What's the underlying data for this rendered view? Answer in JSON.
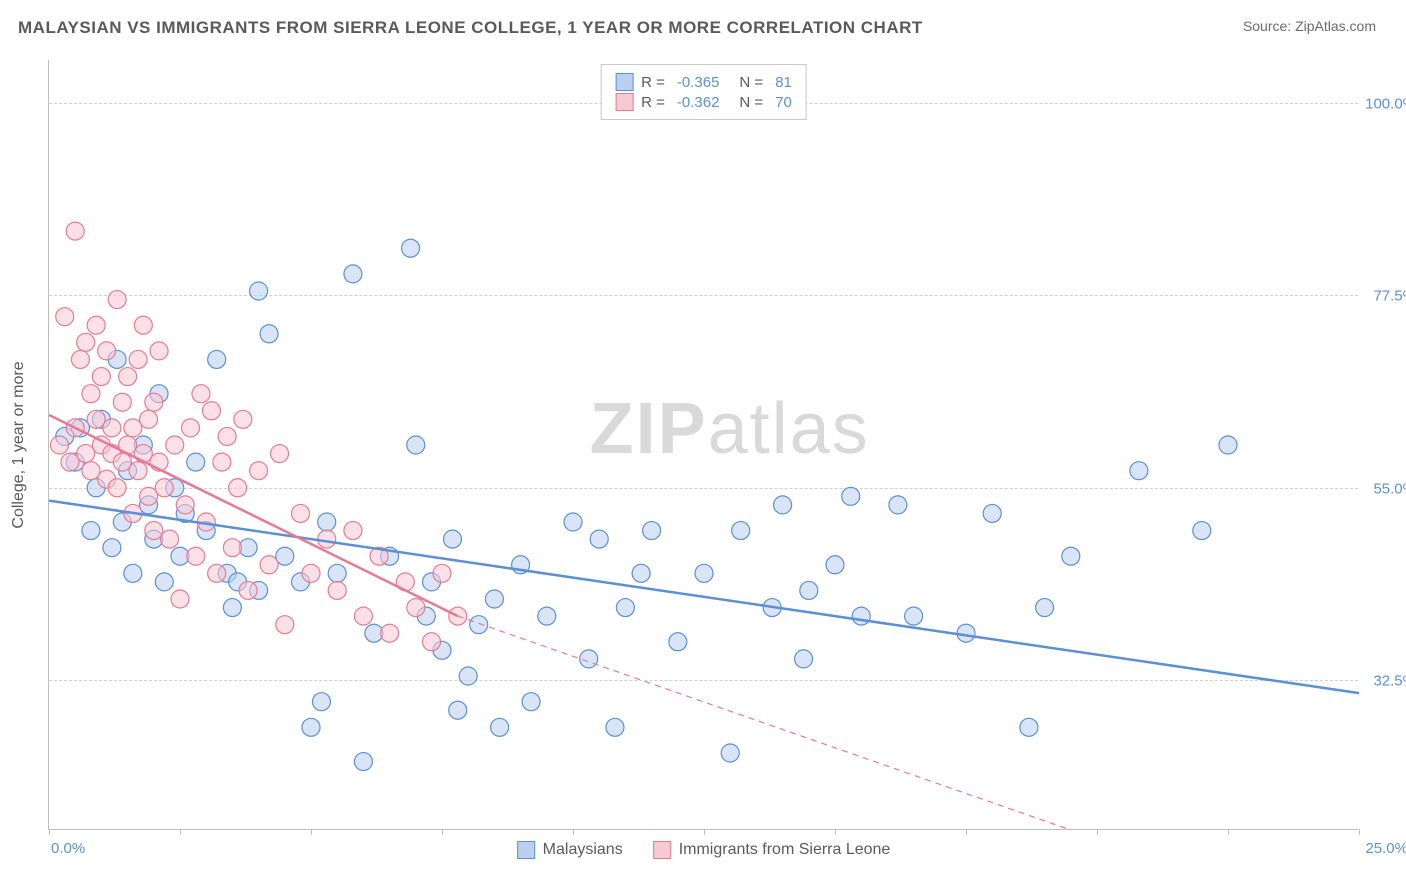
{
  "header": {
    "title": "MALAYSIAN VS IMMIGRANTS FROM SIERRA LEONE COLLEGE, 1 YEAR OR MORE CORRELATION CHART",
    "source": "Source: ZipAtlas.com"
  },
  "watermark": {
    "zip": "ZIP",
    "atlas": "atlas"
  },
  "chart": {
    "type": "scatter",
    "yaxis_title": "College, 1 year or more",
    "background_color": "#ffffff",
    "grid_color": "#d0d0d0",
    "axis_color": "#bdbdbd",
    "tick_label_color": "#5b8fd6",
    "xlim": [
      0,
      25
    ],
    "ylim": [
      15,
      105
    ],
    "xticks": [
      0,
      2.5,
      5,
      7.5,
      10,
      12.5,
      15,
      17.5,
      20,
      22.5,
      25
    ],
    "xtick_labels": {
      "left": "0.0%",
      "right": "25.0%"
    },
    "yticks": [
      {
        "value": 32.5,
        "label": "32.5%"
      },
      {
        "value": 55.0,
        "label": "55.0%"
      },
      {
        "value": 77.5,
        "label": "77.5%"
      },
      {
        "value": 100.0,
        "label": "100.0%"
      }
    ],
    "marker_radius": 9,
    "marker_opacity": 0.55,
    "legend_top": {
      "rows": [
        {
          "swatch_fill": "#b9d0ee",
          "swatch_border": "#5b8fd6",
          "r_label": "R =",
          "r_value": "-0.365",
          "n_label": "N =",
          "n_value": "81"
        },
        {
          "swatch_fill": "#f7c9d4",
          "swatch_border": "#e67a94",
          "r_label": "R =",
          "r_value": "-0.362",
          "n_label": "N =",
          "n_value": "70"
        }
      ]
    },
    "legend_bottom": {
      "items": [
        {
          "swatch_fill": "#b9d0ee",
          "swatch_border": "#5b8fd6",
          "label": "Malaysians"
        },
        {
          "swatch_fill": "#f7c9d4",
          "swatch_border": "#e67a94",
          "label": "Immigrants from Sierra Leone"
        }
      ]
    },
    "series": [
      {
        "name": "Malaysians",
        "fill": "#b9d0ee",
        "stroke": "#5b8fd6",
        "line_solid": {
          "x1": 0,
          "y1": 53.5,
          "x2": 25,
          "y2": 31.0
        },
        "line_width": 2.5,
        "points": [
          [
            0.3,
            61
          ],
          [
            0.5,
            58
          ],
          [
            0.6,
            62
          ],
          [
            0.8,
            50
          ],
          [
            0.9,
            55
          ],
          [
            1.0,
            63
          ],
          [
            1.2,
            48
          ],
          [
            1.3,
            70
          ],
          [
            1.4,
            51
          ],
          [
            1.5,
            57
          ],
          [
            1.6,
            45
          ],
          [
            1.8,
            60
          ],
          [
            1.9,
            53
          ],
          [
            2.0,
            49
          ],
          [
            2.1,
            66
          ],
          [
            2.2,
            44
          ],
          [
            2.4,
            55
          ],
          [
            2.5,
            47
          ],
          [
            2.6,
            52
          ],
          [
            2.8,
            58
          ],
          [
            3.0,
            50
          ],
          [
            3.2,
            70
          ],
          [
            3.4,
            45
          ],
          [
            3.5,
            41
          ],
          [
            3.6,
            44
          ],
          [
            3.8,
            48
          ],
          [
            4.0,
            43
          ],
          [
            4.2,
            73
          ],
          [
            4.5,
            47
          ],
          [
            4.8,
            44
          ],
          [
            5.0,
            27
          ],
          [
            5.2,
            30
          ],
          [
            5.3,
            51
          ],
          [
            5.5,
            45
          ],
          [
            5.8,
            80
          ],
          [
            6.0,
            23
          ],
          [
            6.2,
            38
          ],
          [
            6.5,
            47
          ],
          [
            7.0,
            60
          ],
          [
            7.2,
            40
          ],
          [
            7.3,
            44
          ],
          [
            7.5,
            36
          ],
          [
            7.7,
            49
          ],
          [
            7.8,
            29
          ],
          [
            8.0,
            33
          ],
          [
            8.2,
            39
          ],
          [
            8.5,
            42
          ],
          [
            8.6,
            27
          ],
          [
            9.0,
            46
          ],
          [
            9.2,
            30
          ],
          [
            9.5,
            40
          ],
          [
            10.0,
            51
          ],
          [
            10.3,
            35
          ],
          [
            10.5,
            49
          ],
          [
            10.8,
            27
          ],
          [
            11.0,
            41
          ],
          [
            11.3,
            45
          ],
          [
            11.5,
            50
          ],
          [
            12.0,
            37
          ],
          [
            12.5,
            45
          ],
          [
            13.0,
            24
          ],
          [
            13.2,
            50
          ],
          [
            13.8,
            41
          ],
          [
            14.0,
            53
          ],
          [
            14.4,
            35
          ],
          [
            14.5,
            43
          ],
          [
            15.0,
            46
          ],
          [
            15.3,
            54
          ],
          [
            15.5,
            40
          ],
          [
            16.2,
            53
          ],
          [
            16.5,
            40
          ],
          [
            17.5,
            38
          ],
          [
            18.0,
            52
          ],
          [
            18.7,
            27
          ],
          [
            19.0,
            41
          ],
          [
            19.5,
            47
          ],
          [
            20.8,
            57
          ],
          [
            22.0,
            50
          ],
          [
            22.5,
            60
          ],
          [
            6.9,
            83
          ],
          [
            4.0,
            78
          ]
        ]
      },
      {
        "name": "Immigrants from Sierra Leone",
        "fill": "#f7c9d4",
        "stroke": "#e67a94",
        "line_solid": {
          "x1": 0,
          "y1": 63.5,
          "x2": 7.8,
          "y2": 40.0
        },
        "line_dashed": {
          "x1": 7.8,
          "y1": 40.0,
          "x2": 19.5,
          "y2": 15.0
        },
        "line_width": 2.5,
        "points": [
          [
            0.2,
            60
          ],
          [
            0.3,
            75
          ],
          [
            0.4,
            58
          ],
          [
            0.5,
            85
          ],
          [
            0.5,
            62
          ],
          [
            0.6,
            70
          ],
          [
            0.7,
            59
          ],
          [
            0.7,
            72
          ],
          [
            0.8,
            66
          ],
          [
            0.8,
            57
          ],
          [
            0.9,
            63
          ],
          [
            0.9,
            74
          ],
          [
            1.0,
            60
          ],
          [
            1.0,
            68
          ],
          [
            1.1,
            56
          ],
          [
            1.1,
            71
          ],
          [
            1.2,
            62
          ],
          [
            1.2,
            59
          ],
          [
            1.3,
            77
          ],
          [
            1.3,
            55
          ],
          [
            1.4,
            58
          ],
          [
            1.4,
            65
          ],
          [
            1.5,
            60
          ],
          [
            1.5,
            68
          ],
          [
            1.6,
            52
          ],
          [
            1.6,
            62
          ],
          [
            1.7,
            70
          ],
          [
            1.7,
            57
          ],
          [
            1.8,
            74
          ],
          [
            1.8,
            59
          ],
          [
            1.9,
            54
          ],
          [
            1.9,
            63
          ],
          [
            2.0,
            50
          ],
          [
            2.0,
            65
          ],
          [
            2.1,
            58
          ],
          [
            2.1,
            71
          ],
          [
            2.2,
            55
          ],
          [
            2.3,
            49
          ],
          [
            2.4,
            60
          ],
          [
            2.5,
            42
          ],
          [
            2.6,
            53
          ],
          [
            2.7,
            62
          ],
          [
            2.8,
            47
          ],
          [
            2.9,
            66
          ],
          [
            3.0,
            51
          ],
          [
            3.1,
            64
          ],
          [
            3.2,
            45
          ],
          [
            3.3,
            58
          ],
          [
            3.4,
            61
          ],
          [
            3.5,
            48
          ],
          [
            3.6,
            55
          ],
          [
            3.7,
            63
          ],
          [
            3.8,
            43
          ],
          [
            4.0,
            57
          ],
          [
            4.2,
            46
          ],
          [
            4.4,
            59
          ],
          [
            4.5,
            39
          ],
          [
            4.8,
            52
          ],
          [
            5.0,
            45
          ],
          [
            5.3,
            49
          ],
          [
            5.5,
            43
          ],
          [
            5.8,
            50
          ],
          [
            6.0,
            40
          ],
          [
            6.3,
            47
          ],
          [
            6.5,
            38
          ],
          [
            6.8,
            44
          ],
          [
            7.0,
            41
          ],
          [
            7.3,
            37
          ],
          [
            7.5,
            45
          ],
          [
            7.8,
            40
          ]
        ]
      }
    ]
  }
}
